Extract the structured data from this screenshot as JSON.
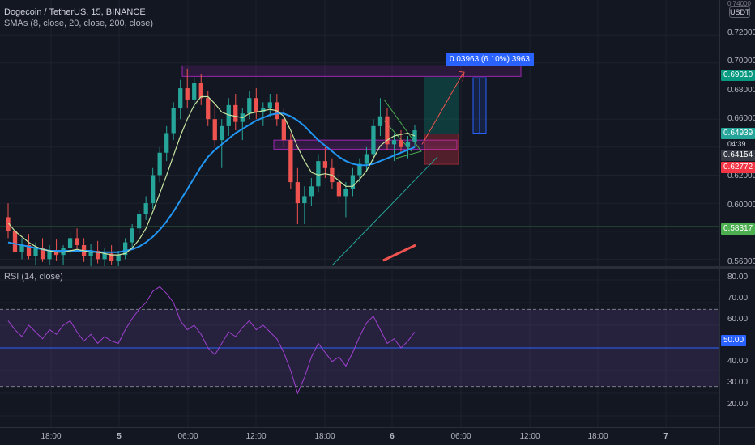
{
  "symbol": {
    "title": "Dogecoin / TetherUS, 15, BINANCE",
    "indicator": "SMAs (8, close, 20, close, 200, close)",
    "rsi_label": "RSI (14, close)"
  },
  "price_axis": {
    "currency": "USDT",
    "ticks": [
      "0.72000",
      "0.70000",
      "0.68000",
      "0.66000",
      "0.62000",
      "0.60000",
      "0.56000"
    ],
    "top_partial": "0.74000"
  },
  "price_badges": {
    "target": "0.69010",
    "current": "0.64939",
    "countdown": "04:39",
    "sma_fast": "0.64154",
    "stop": "0.62772",
    "support": "0.58317"
  },
  "rsi_axis": {
    "ticks": [
      "80.00",
      "70.00",
      "60.00",
      "40.00",
      "30.00",
      "20.00"
    ],
    "midline_badge": "50.00"
  },
  "time_axis": {
    "ticks": [
      "18:00",
      "5",
      "06:00",
      "12:00",
      "18:00",
      "6",
      "06:00",
      "12:00",
      "18:00",
      "7"
    ]
  },
  "measure": {
    "label": "0.03963 (6.10%) 3963"
  },
  "colors": {
    "background": "#131722",
    "up": "#26a69a",
    "down": "#ef5350",
    "sma_fast": "#c7e5a0",
    "sma_slow": "#2196f3",
    "rsi_line": "#a040d0",
    "rsi_band": "#7e57c2",
    "target_badge": "#089981",
    "stop_badge": "#f23645",
    "support_badge": "#4caf50",
    "measure_blue": "#2962ff"
  },
  "chart_data": {
    "type": "candlestick",
    "price_range": [
      0.555,
      0.745
    ],
    "rsi_range": [
      15,
      85
    ],
    "ohlc": [
      [
        0.59,
        0.6,
        0.575,
        0.58
      ],
      [
        0.58,
        0.588,
        0.562,
        0.565
      ],
      [
        0.565,
        0.575,
        0.56,
        0.57
      ],
      [
        0.57,
        0.578,
        0.56,
        0.562
      ],
      [
        0.562,
        0.572,
        0.556,
        0.568
      ],
      [
        0.568,
        0.575,
        0.558,
        0.56
      ],
      [
        0.56,
        0.57,
        0.556,
        0.566
      ],
      [
        0.566,
        0.574,
        0.559,
        0.563
      ],
      [
        0.563,
        0.57,
        0.556,
        0.568
      ],
      [
        0.568,
        0.58,
        0.562,
        0.575
      ],
      [
        0.575,
        0.582,
        0.565,
        0.57
      ],
      [
        0.57,
        0.575,
        0.558,
        0.562
      ],
      [
        0.562,
        0.571,
        0.555,
        0.566
      ],
      [
        0.566,
        0.573,
        0.557,
        0.56
      ],
      [
        0.56,
        0.568,
        0.555,
        0.564
      ],
      [
        0.564,
        0.57,
        0.556,
        0.559
      ],
      [
        0.559,
        0.566,
        0.555,
        0.563
      ],
      [
        0.563,
        0.575,
        0.56,
        0.572
      ],
      [
        0.572,
        0.585,
        0.568,
        0.582
      ],
      [
        0.582,
        0.595,
        0.578,
        0.592
      ],
      [
        0.592,
        0.605,
        0.588,
        0.6
      ],
      [
        0.6,
        0.625,
        0.596,
        0.62
      ],
      [
        0.62,
        0.64,
        0.615,
        0.636
      ],
      [
        0.636,
        0.655,
        0.63,
        0.65
      ],
      [
        0.65,
        0.672,
        0.645,
        0.668
      ],
      [
        0.668,
        0.688,
        0.66,
        0.682
      ],
      [
        0.682,
        0.696,
        0.668,
        0.674
      ],
      [
        0.674,
        0.69,
        0.668,
        0.686
      ],
      [
        0.686,
        0.692,
        0.67,
        0.675
      ],
      [
        0.675,
        0.68,
        0.655,
        0.66
      ],
      [
        0.66,
        0.672,
        0.64,
        0.645
      ],
      [
        0.645,
        0.66,
        0.625,
        0.655
      ],
      [
        0.655,
        0.675,
        0.648,
        0.67
      ],
      [
        0.67,
        0.678,
        0.652,
        0.658
      ],
      [
        0.658,
        0.668,
        0.645,
        0.664
      ],
      [
        0.664,
        0.68,
        0.66,
        0.675
      ],
      [
        0.675,
        0.682,
        0.66,
        0.665
      ],
      [
        0.665,
        0.672,
        0.655,
        0.668
      ],
      [
        0.668,
        0.678,
        0.662,
        0.672
      ],
      [
        0.672,
        0.678,
        0.655,
        0.66
      ],
      [
        0.66,
        0.668,
        0.64,
        0.645
      ],
      [
        0.645,
        0.65,
        0.61,
        0.615
      ],
      [
        0.615,
        0.625,
        0.585,
        0.6
      ],
      [
        0.6,
        0.612,
        0.585,
        0.605
      ],
      [
        0.605,
        0.618,
        0.598,
        0.612
      ],
      [
        0.612,
        0.635,
        0.608,
        0.63
      ],
      [
        0.63,
        0.64,
        0.618,
        0.625
      ],
      [
        0.625,
        0.632,
        0.61,
        0.615
      ],
      [
        0.615,
        0.622,
        0.6,
        0.605
      ],
      [
        0.605,
        0.615,
        0.59,
        0.61
      ],
      [
        0.61,
        0.625,
        0.605,
        0.62
      ],
      [
        0.62,
        0.632,
        0.615,
        0.628
      ],
      [
        0.628,
        0.64,
        0.622,
        0.635
      ],
      [
        0.635,
        0.66,
        0.63,
        0.655
      ],
      [
        0.655,
        0.675,
        0.648,
        0.662
      ],
      [
        0.662,
        0.668,
        0.638,
        0.642
      ],
      [
        0.642,
        0.65,
        0.63,
        0.645
      ],
      [
        0.645,
        0.652,
        0.636,
        0.64
      ],
      [
        0.64,
        0.648,
        0.632,
        0.644
      ],
      [
        0.644,
        0.656,
        0.64,
        0.652
      ]
    ],
    "sma_fast": [
      0.586,
      0.58,
      0.576,
      0.572,
      0.569,
      0.567,
      0.566,
      0.565,
      0.565,
      0.566,
      0.567,
      0.566,
      0.565,
      0.565,
      0.564,
      0.563,
      0.563,
      0.564,
      0.568,
      0.574,
      0.582,
      0.594,
      0.607,
      0.62,
      0.634,
      0.648,
      0.66,
      0.67,
      0.676,
      0.676,
      0.671,
      0.665,
      0.663,
      0.662,
      0.661,
      0.664,
      0.665,
      0.666,
      0.667,
      0.666,
      0.662,
      0.652,
      0.64,
      0.63,
      0.622,
      0.62,
      0.621,
      0.62,
      0.616,
      0.612,
      0.612,
      0.617,
      0.623,
      0.632,
      0.641,
      0.645,
      0.648,
      0.649,
      0.65,
      0.648
    ],
    "sma_slow": [
      0.572,
      0.571,
      0.57,
      0.569,
      0.568,
      0.567,
      0.566,
      0.566,
      0.566,
      0.566,
      0.566,
      0.566,
      0.566,
      0.565,
      0.565,
      0.565,
      0.565,
      0.566,
      0.567,
      0.569,
      0.572,
      0.576,
      0.581,
      0.587,
      0.594,
      0.602,
      0.61,
      0.618,
      0.626,
      0.633,
      0.638,
      0.642,
      0.646,
      0.65,
      0.653,
      0.656,
      0.659,
      0.661,
      0.663,
      0.664,
      0.664,
      0.662,
      0.659,
      0.655,
      0.65,
      0.645,
      0.641,
      0.637,
      0.633,
      0.63,
      0.628,
      0.627,
      0.627,
      0.628,
      0.63,
      0.632,
      0.634,
      0.636,
      0.638,
      0.64
    ],
    "rsi": [
      62,
      58,
      55,
      60,
      57,
      54,
      58,
      56,
      60,
      62,
      57,
      53,
      56,
      52,
      55,
      53,
      52,
      58,
      63,
      67,
      70,
      75,
      77,
      74,
      70,
      62,
      58,
      60,
      56,
      50,
      47,
      52,
      57,
      55,
      59,
      62,
      58,
      60,
      57,
      54,
      48,
      40,
      30,
      37,
      46,
      52,
      48,
      44,
      46,
      42,
      48,
      55,
      61,
      64,
      58,
      52,
      54,
      50,
      53,
      57
    ],
    "levels": {
      "target": 0.6901,
      "current": 0.64939,
      "support": 0.58317,
      "stop": 0.62772
    },
    "rsi_band": [
      33,
      67
    ],
    "rsi_mid": 50
  }
}
